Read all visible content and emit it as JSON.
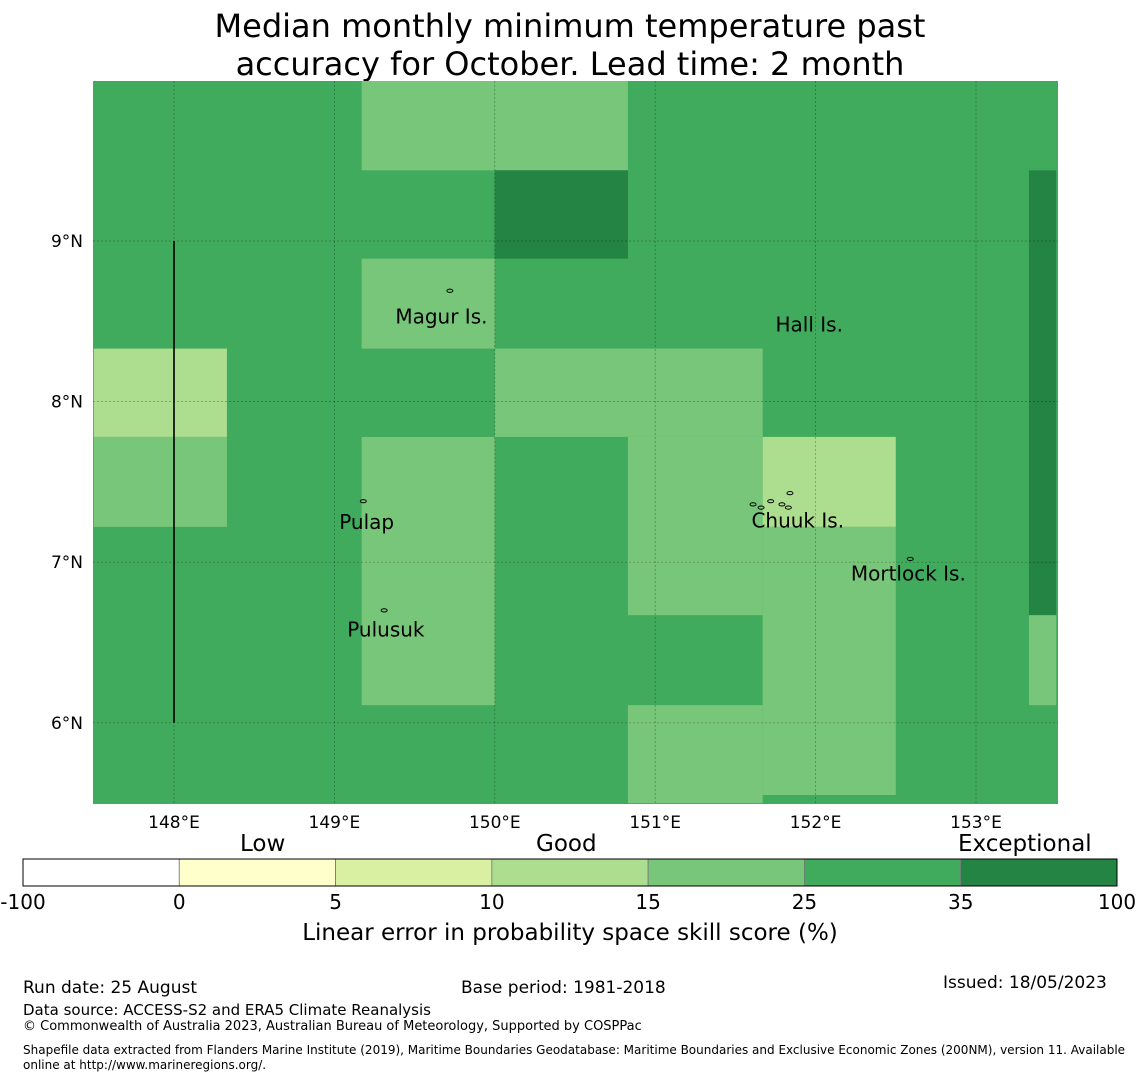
{
  "title": {
    "line1": "Median monthly minimum temperature past",
    "line2": "accuracy for October. Lead time: 2 month"
  },
  "map": {
    "lon_range": [
      147.5,
      153.5
    ],
    "lat_range": [
      5.5,
      10.0
    ],
    "lon_ticks": [
      {
        "value": 148,
        "label": "148°E"
      },
      {
        "value": 149,
        "label": "149°E"
      },
      {
        "value": 150,
        "label": "150°E"
      },
      {
        "value": 151,
        "label": "151°E"
      },
      {
        "value": 152,
        "label": "152°E"
      },
      {
        "value": 153,
        "label": "153°E"
      }
    ],
    "lat_ticks": [
      {
        "value": 9,
        "label": "9°N"
      },
      {
        "value": 8,
        "label": "8°N"
      },
      {
        "value": 7,
        "label": "7°N"
      },
      {
        "value": 6,
        "label": "6°N"
      }
    ],
    "default_color": "#41ab5d",
    "cells": [
      {
        "lon": [
          149.17,
          150.0
        ],
        "lat": [
          9.44,
          10.0
        ],
        "color": "#78c679"
      },
      {
        "lon": [
          150.0,
          150.83
        ],
        "lat": [
          9.44,
          10.0
        ],
        "color": "#78c679"
      },
      {
        "lon": [
          150.0,
          150.83
        ],
        "lat": [
          8.89,
          9.44
        ],
        "color": "#238443"
      },
      {
        "lon": [
          149.17,
          150.0
        ],
        "lat": [
          8.33,
          8.89
        ],
        "color": "#78c679"
      },
      {
        "lon": [
          147.5,
          148.33
        ],
        "lat": [
          7.78,
          8.33
        ],
        "color": "#addd8e"
      },
      {
        "lon": [
          147.5,
          148.33
        ],
        "lat": [
          7.22,
          7.78
        ],
        "color": "#78c679"
      },
      {
        "lon": [
          150.0,
          151.67
        ],
        "lat": [
          7.78,
          8.33
        ],
        "color": "#78c679"
      },
      {
        "lon": [
          150.83,
          151.67
        ],
        "lat": [
          6.67,
          7.78
        ],
        "color": "#78c679"
      },
      {
        "lon": [
          149.17,
          150.0
        ],
        "lat": [
          6.11,
          7.78
        ],
        "color": "#78c679"
      },
      {
        "lon": [
          151.67,
          152.5
        ],
        "lat": [
          7.22,
          7.78
        ],
        "color": "#addd8e"
      },
      {
        "lon": [
          151.67,
          152.5
        ],
        "lat": [
          5.55,
          7.22
        ],
        "color": "#78c679"
      },
      {
        "lon": [
          150.83,
          151.67
        ],
        "lat": [
          5.5,
          6.11
        ],
        "color": "#78c679"
      },
      {
        "lon": [
          153.33,
          153.5
        ],
        "lat": [
          6.67,
          9.44
        ],
        "color": "#238443"
      },
      {
        "lon": [
          153.33,
          153.5
        ],
        "lat": [
          6.11,
          6.67
        ],
        "color": "#78c679"
      }
    ],
    "boundary_line": {
      "lon": 148.0,
      "lat": [
        6.0,
        9.0
      ]
    },
    "places": [
      {
        "name": "Magur Is.",
        "lon": 149.38,
        "lat": 8.53
      },
      {
        "name": "Hall Is.",
        "lon": 151.75,
        "lat": 8.48
      },
      {
        "name": "Pulap",
        "lon": 149.03,
        "lat": 7.25
      },
      {
        "name": "Chuuk Is.",
        "lon": 151.6,
        "lat": 7.26
      },
      {
        "name": "Mortlock Is.",
        "lon": 152.22,
        "lat": 6.93
      },
      {
        "name": "Pulusuk",
        "lon": 149.08,
        "lat": 6.58
      }
    ],
    "islands": [
      {
        "lon": 149.72,
        "lat": 8.69
      },
      {
        "lon": 149.18,
        "lat": 7.38
      },
      {
        "lon": 149.31,
        "lat": 6.7
      },
      {
        "lon": 151.61,
        "lat": 7.36
      },
      {
        "lon": 151.66,
        "lat": 7.34
      },
      {
        "lon": 151.72,
        "lat": 7.38
      },
      {
        "lon": 151.79,
        "lat": 7.36
      },
      {
        "lon": 151.84,
        "lat": 7.43
      },
      {
        "lon": 151.83,
        "lat": 7.34
      },
      {
        "lon": 152.59,
        "lat": 7.02
      }
    ]
  },
  "colorbar": {
    "categories": [
      "Low",
      "Good",
      "Exceptional"
    ],
    "bins": [
      {
        "color": "#ffffff"
      },
      {
        "color": "#ffffcc"
      },
      {
        "color": "#d9f0a3"
      },
      {
        "color": "#addd8e"
      },
      {
        "color": "#78c679"
      },
      {
        "color": "#41ab5d"
      },
      {
        "color": "#238443"
      }
    ],
    "tick_labels": [
      "-100",
      "0",
      "5",
      "10",
      "15",
      "25",
      "35",
      "100"
    ],
    "axis_label": "Linear error in probability space skill score (%)"
  },
  "footer": {
    "run_date": "Run date: 25 August",
    "base_period": "Base period: 1981-2018",
    "issued": "Issued: 18/05/2023",
    "data_source": "Data source: ACCESS-S2 and ERA5 Climate Reanalysis",
    "copyright": "© Commonwealth of Australia 2023, Australian Bureau of Meteorology, Supported by COSPPac",
    "shapefile_line1": "Shapefile data extracted from Flanders Marine Institute (2019), Maritime Boundaries Geodatabase: Maritime Boundaries and Exclusive Economic Zones (200NM), version 11. Available",
    "shapefile_line2": "online at http://www.marineregions.org/."
  }
}
